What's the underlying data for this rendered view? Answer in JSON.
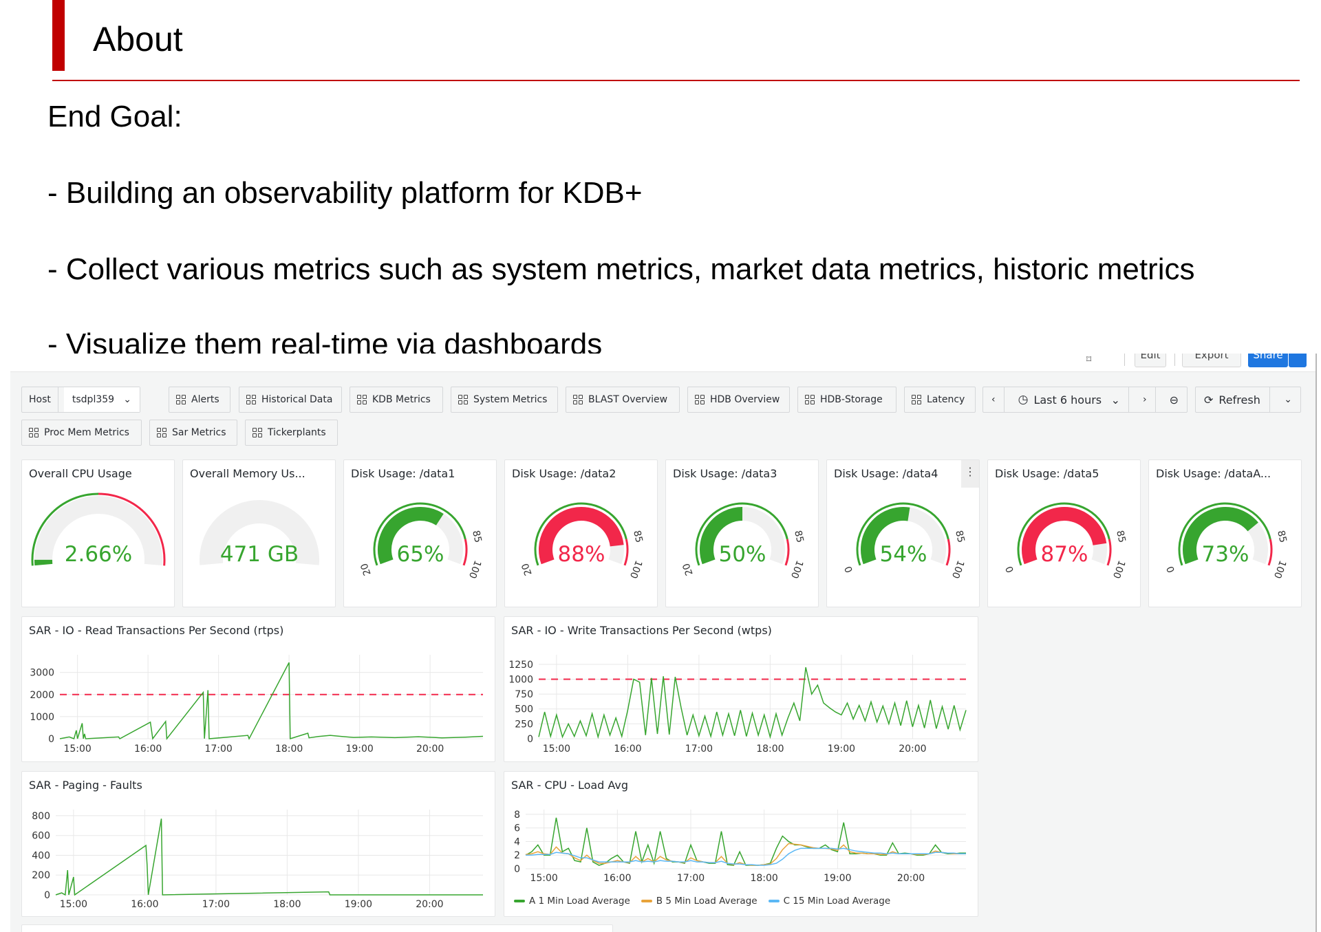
{
  "slide": {
    "title": "About",
    "heading": "End Goal:",
    "bullets": [
      "- Building an observability platform for KDB+",
      "- Collect various metrics such as system metrics, market data metrics, historic metrics",
      "- Visualize them real-time via dashboards"
    ]
  },
  "dashboard": {
    "top_actions": {
      "edit": "Edit",
      "export": "Export",
      "share": "Share"
    },
    "host": {
      "label": "Host",
      "value": "tsdpl359"
    },
    "links": [
      "Alerts",
      "Historical Data",
      "KDB Metrics",
      "System Metrics",
      "BLAST Overview",
      "HDB Overview",
      "HDB-Storage",
      "Latency",
      "Proc Mem Metrics",
      "Sar Metrics",
      "Tickerplants"
    ],
    "time_range": "Last 6 hours",
    "refresh": "Refresh",
    "colors": {
      "green": "#37a52f",
      "red": "#f2274a",
      "blue": "#5bb8f5",
      "orange": "#e8a33a",
      "track": "#f0f0f0"
    },
    "gauges": [
      {
        "title": "Overall CPU Usage",
        "display": "2.66%",
        "value": 2.66,
        "min": 0,
        "max": 100,
        "threshold": 50,
        "kind": "cpu"
      },
      {
        "title": "Overall Memory Us...",
        "display": "471 GB",
        "value": 0,
        "kind": "memory"
      },
      {
        "title": "Disk Usage: /data1",
        "display": "65%",
        "value": 65,
        "min_label": "20",
        "threshold": 85,
        "max": 100,
        "kind": "disk"
      },
      {
        "title": "Disk Usage: /data2",
        "display": "88%",
        "value": 88,
        "min_label": "20",
        "threshold": 85,
        "max": 100,
        "kind": "disk"
      },
      {
        "title": "Disk Usage: /data3",
        "display": "50%",
        "value": 50,
        "min_label": "20",
        "threshold": 85,
        "max": 100,
        "kind": "disk"
      },
      {
        "title": "Disk Usage: /data4",
        "display": "54%",
        "value": 54,
        "min_label": "0",
        "threshold": 85,
        "max": 100,
        "kind": "disk"
      },
      {
        "title": "Disk Usage: /data5",
        "display": "87%",
        "value": 87,
        "min_label": "0",
        "threshold": 85,
        "max": 100,
        "kind": "disk"
      },
      {
        "title": "Disk Usage: /dataA...",
        "display": "73%",
        "value": 73,
        "min_label": "0",
        "threshold": 85,
        "max": 100,
        "kind": "disk"
      }
    ]
  },
  "chart_data": [
    {
      "type": "line",
      "title": "SAR - IO - Read Transactions Per Second (rtps)",
      "ylim": [
        0,
        3800
      ],
      "yticks": [
        0,
        1000,
        2000,
        3000
      ],
      "xticks": [
        "15:00",
        "16:00",
        "17:00",
        "18:00",
        "19:00",
        "20:00"
      ],
      "xlim": [
        "14:45",
        "20:45"
      ],
      "threshold": 2000,
      "series": [
        {
          "name": "rtps",
          "points": [
            [
              "14:45",
              0
            ],
            [
              "14:53",
              80
            ],
            [
              "14:57",
              0
            ],
            [
              "14:59",
              380
            ],
            [
              "15:00",
              0
            ],
            [
              "15:04",
              700
            ],
            [
              "15:05",
              0
            ],
            [
              "15:06",
              220
            ],
            [
              "15:07",
              0
            ],
            [
              "15:35",
              80
            ],
            [
              "15:36",
              0
            ],
            [
              "16:02",
              750
            ],
            [
              "16:03",
              380
            ],
            [
              "16:04",
              0
            ],
            [
              "16:15",
              780
            ],
            [
              "16:16",
              0
            ],
            [
              "16:47",
              2100
            ],
            [
              "16:48",
              0
            ],
            [
              "16:51",
              2200
            ],
            [
              "16:52",
              0
            ],
            [
              "17:25",
              150
            ],
            [
              "17:26",
              0
            ],
            [
              "18:00",
              3450
            ],
            [
              "18:01",
              0
            ],
            [
              "18:16",
              250
            ],
            [
              "18:17",
              40
            ],
            [
              "18:25",
              100
            ],
            [
              "18:35",
              150
            ],
            [
              "18:45",
              100
            ],
            [
              "18:55",
              60
            ],
            [
              "19:10",
              80
            ],
            [
              "19:30",
              50
            ],
            [
              "19:50",
              90
            ],
            [
              "20:10",
              40
            ],
            [
              "20:30",
              70
            ],
            [
              "20:45",
              110
            ]
          ]
        }
      ]
    },
    {
      "type": "line",
      "title": "SAR - IO - Write Transactions Per Second (wtps)",
      "ylim": [
        0,
        1410
      ],
      "yticks": [
        0,
        250,
        500,
        750,
        1000,
        1250
      ],
      "xticks": [
        "15:00",
        "16:00",
        "17:00",
        "18:00",
        "19:00",
        "20:00"
      ],
      "xlim": [
        "14:45",
        "20:45"
      ],
      "threshold": 1000,
      "x_start": "14:45",
      "step_min": 5,
      "series": [
        {
          "name": "wtps",
          "values": [
            30,
            450,
            40,
            400,
            30,
            250,
            40,
            300,
            50,
            420,
            30,
            400,
            60,
            350,
            40,
            480,
            1000,
            950,
            60,
            1020,
            80,
            1050,
            70,
            1040,
            520,
            60,
            400,
            50,
            380,
            40,
            450,
            60,
            420,
            50,
            480,
            40,
            430,
            60,
            400,
            30,
            420,
            60,
            350,
            600,
            300,
            1200,
            750,
            900,
            600,
            520,
            450,
            400,
            600,
            330,
            560,
            300,
            620,
            280,
            550,
            250,
            600,
            220,
            640,
            200,
            560,
            180,
            650,
            170,
            540,
            160,
            560,
            150,
            480
          ]
        }
      ]
    },
    {
      "type": "line",
      "title": "SAR - Paging - Faults",
      "ylim": [
        0,
        862
      ],
      "yticks": [
        0,
        200,
        400,
        600,
        800
      ],
      "xticks": [
        "15:00",
        "16:00",
        "17:00",
        "18:00",
        "19:00",
        "20:00"
      ],
      "xlim": [
        "14:45",
        "20:45"
      ],
      "series": [
        {
          "name": "faults",
          "points": [
            [
              "14:45",
              0
            ],
            [
              "14:50",
              20
            ],
            [
              "14:53",
              0
            ],
            [
              "14:55",
              250
            ],
            [
              "14:56",
              0
            ],
            [
              "15:00",
              180
            ],
            [
              "15:01",
              0
            ],
            [
              "16:01",
              500
            ],
            [
              "16:02",
              300
            ],
            [
              "16:03",
              0
            ],
            [
              "16:14",
              770
            ],
            [
              "16:15",
              0
            ],
            [
              "18:35",
              30
            ],
            [
              "18:36",
              0
            ],
            [
              "20:45",
              0
            ]
          ]
        }
      ]
    },
    {
      "type": "line",
      "title": "SAR - CPU - Load Avg",
      "ylim": [
        0,
        8.7
      ],
      "yticks": [
        0,
        2,
        4,
        6,
        8
      ],
      "xticks": [
        "15:00",
        "16:00",
        "17:00",
        "18:00",
        "19:00",
        "20:00"
      ],
      "xlim": [
        "14:45",
        "20:45"
      ],
      "x_start": "14:45",
      "step_min": 5,
      "series": [
        {
          "name": "A 1 Min Load Average",
          "color": "#37a52f",
          "values": [
            2,
            2.5,
            3.5,
            2,
            2,
            7.5,
            2.5,
            3,
            1.2,
            1,
            6,
            1,
            0.5,
            0.8,
            1.5,
            2,
            1,
            0.8,
            5.5,
            1,
            3.5,
            0.8,
            5.5,
            1.5,
            1,
            1,
            0.8,
            3.5,
            1.2,
            1,
            0.8,
            0.8,
            5.5,
            0.6,
            0.5,
            2.5,
            0.5,
            0.5,
            0.5,
            0.6,
            0.8,
            3,
            4.8,
            4,
            3.5,
            3.5,
            3.2,
            3,
            3,
            3.5,
            2.8,
            2.5,
            6.8,
            2.2,
            2.2,
            2.3,
            2.2,
            2.2,
            2,
            2,
            3.8,
            2.2,
            2.3,
            2.2,
            2,
            2,
            2.2,
            3.5,
            2.4,
            2.2,
            2.2,
            2.3,
            2.3
          ]
        },
        {
          "name": "B 5 Min Load Average",
          "color": "#e8a33a",
          "values": [
            2.1,
            2.2,
            2.5,
            2.2,
            2.1,
            3.2,
            2.3,
            2.2,
            1.6,
            1.2,
            2,
            1.2,
            0.8,
            0.8,
            1,
            1.2,
            1,
            0.9,
            1.8,
            1,
            1.5,
            1,
            1.8,
            1.3,
            1.1,
            1,
            0.9,
            1.6,
            1.2,
            1,
            0.9,
            0.9,
            1.8,
            0.8,
            0.6,
            0.9,
            0.6,
            0.5,
            0.5,
            0.6,
            0.7,
            1.5,
            2.8,
            3.7,
            3.6,
            3.5,
            3.3,
            3.1,
            3,
            3,
            2.9,
            2.7,
            3.5,
            2.5,
            2.3,
            2.3,
            2.2,
            2.2,
            2.1,
            2.1,
            2.5,
            2.2,
            2.2,
            2.2,
            2.1,
            2.1,
            2.2,
            2.6,
            2.4,
            2.3,
            2.2,
            2.2,
            2.2
          ]
        },
        {
          "name": "C 15 Min Load Average",
          "color": "#5bb8f5",
          "values": [
            2,
            2,
            2.1,
            2.1,
            2.1,
            2.4,
            2.3,
            2.2,
            1.9,
            1.6,
            1.6,
            1.3,
            1,
            1,
            1,
            1,
            1,
            1,
            1.2,
            1,
            1.1,
            1,
            1.2,
            1.1,
            1.1,
            1,
            1,
            1.2,
            1,
            1,
            0.9,
            0.9,
            1.1,
            0.8,
            0.7,
            0.7,
            0.6,
            0.6,
            0.5,
            0.5,
            0.6,
            0.8,
            1.4,
            2.2,
            2.7,
            3,
            3,
            3,
            3,
            3,
            3,
            2.9,
            3,
            2.8,
            2.6,
            2.5,
            2.4,
            2.3,
            2.3,
            2.2,
            2.3,
            2.2,
            2.2,
            2.2,
            2.2,
            2.2,
            2.2,
            2.4,
            2.4,
            2.3,
            2.3,
            2.2,
            2.2
          ]
        }
      ]
    }
  ]
}
